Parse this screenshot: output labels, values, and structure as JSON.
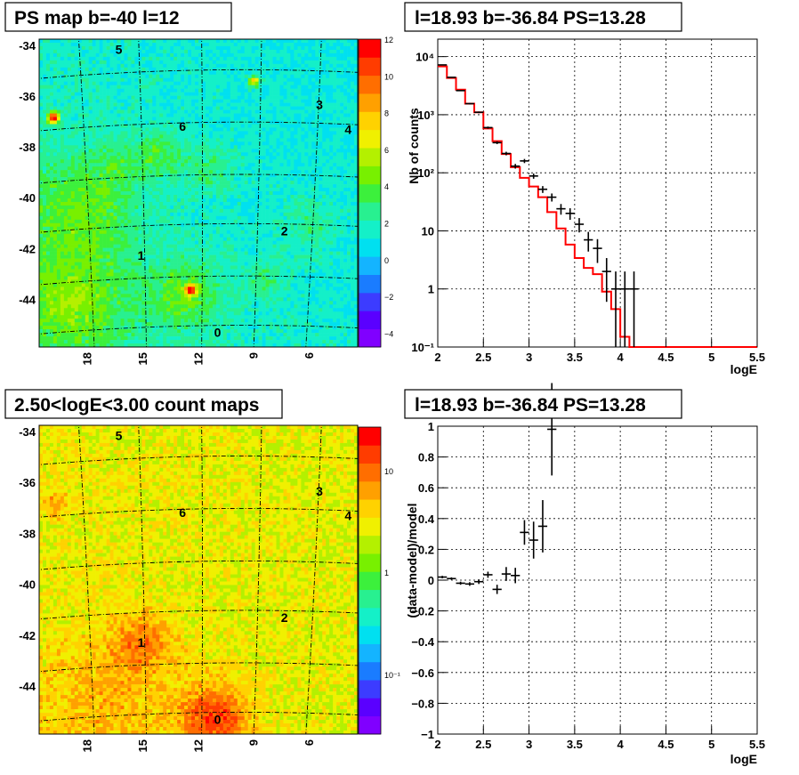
{
  "palette": [
    "#8000ff",
    "#5a00ff",
    "#3c3cff",
    "#1a7cff",
    "#14b4ff",
    "#00e0f0",
    "#14f0c8",
    "#28f090",
    "#3cf03c",
    "#78f000",
    "#b4f000",
    "#f0f000",
    "#ffd200",
    "#ffa000",
    "#ff6e00",
    "#ff3c00",
    "#ff0000"
  ],
  "panels": {
    "ps_map": {
      "title": "PS map b=-40 l=12",
      "type": "heatmap",
      "ytick_labels": [
        "-34",
        "-36",
        "-38",
        "-40",
        "-42",
        "-44"
      ],
      "xtick_labels": [
        "18",
        "15",
        "12",
        "9",
        "6"
      ],
      "colorbar_ticks": [
        "12",
        "10",
        "8",
        "6",
        "4",
        "2",
        "0",
        "−2",
        "−4"
      ],
      "sources": [
        {
          "label": "5"
        },
        {
          "label": "3"
        },
        {
          "label": "4"
        },
        {
          "label": "6"
        },
        {
          "label": "2"
        },
        {
          "label": "1"
        },
        {
          "label": "0"
        }
      ]
    },
    "count_map": {
      "title": "2.50<logE<3.00 count maps",
      "type": "heatmap",
      "ytick_labels": [
        "-34",
        "-36",
        "-38",
        "-40",
        "-42",
        "-44"
      ],
      "xtick_labels": [
        "18",
        "15",
        "12",
        "9",
        "6"
      ],
      "colorbar_ticks": [
        "10",
        "1",
        "10⁻¹"
      ],
      "sources": [
        {
          "label": "5"
        },
        {
          "label": "3"
        },
        {
          "label": "4"
        },
        {
          "label": "6"
        },
        {
          "label": "2"
        },
        {
          "label": "1"
        },
        {
          "label": "0"
        }
      ]
    },
    "spectrum": {
      "title": "l=18.93 b=-36.84 PS=13.28"
    },
    "residual": {
      "title": "l=18.93 b=-36.84 PS=13.28"
    }
  },
  "chart_data": [
    {
      "type": "heatmap",
      "title": "PS map b=-40 l=12",
      "xlabel": "",
      "ylabel": "",
      "colorbar_range": [
        -5,
        12
      ],
      "x_ticks": [
        18,
        15,
        12,
        9,
        6
      ],
      "y_ticks": [
        -34,
        -36,
        -38,
        -40,
        -42,
        -44
      ]
    },
    {
      "type": "heatmap",
      "title": "2.50<logE<3.00 count maps",
      "xlabel": "",
      "ylabel": "",
      "colorbar_scale": "log",
      "x_ticks": [
        18,
        15,
        12,
        9,
        6
      ],
      "y_ticks": [
        -34,
        -36,
        -38,
        -40,
        -42,
        -44
      ]
    },
    {
      "type": "line",
      "title": "l=18.93 b=-36.84 PS=13.28",
      "xlabel": "logE",
      "ylabel": "Nb of counts",
      "xlim": [
        2,
        5.5
      ],
      "ylim": [
        0.1,
        20000
      ],
      "yscale": "log",
      "grid": true,
      "x_ticks": [
        "2",
        "2.5",
        "3",
        "3.5",
        "4",
        "4.5",
        "5",
        "5.5"
      ],
      "y_ticks": [
        {
          "label": "10⁴",
          "value": 10000
        },
        {
          "label": "10³",
          "value": 1000
        },
        {
          "label": "10²",
          "value": 100
        },
        {
          "label": "10",
          "value": 10
        },
        {
          "label": "1",
          "value": 1
        },
        {
          "label": "10⁻¹",
          "value": 0.1
        }
      ],
      "bin_edges": [
        2.0,
        2.1,
        2.2,
        2.3,
        2.4,
        2.5,
        2.6,
        2.7,
        2.8,
        2.9,
        3.0,
        3.1,
        3.2,
        3.3,
        3.4,
        3.5,
        3.6,
        3.7,
        3.8,
        3.9,
        4.0,
        4.1,
        4.2,
        4.3,
        4.4,
        4.5,
        4.6,
        4.7,
        4.8,
        4.9,
        5.0,
        5.1,
        5.2,
        5.3,
        5.4,
        5.5
      ],
      "series": [
        {
          "name": "",
          "color": "#ff0000",
          "values": [
            6800,
            4300,
            2700,
            1550,
            1100,
            580,
            350,
            210,
            125,
            82,
            58,
            38,
            21,
            11,
            5.8,
            3.4,
            2.3,
            1.8,
            0.9,
            0.45,
            0.15,
            0.1,
            0.1,
            0.1,
            0.1,
            0.1,
            0.1,
            0.1,
            0.1,
            0.1,
            0.1,
            0.1,
            0.1,
            0.1,
            0.1
          ]
        },
        {
          "name": "",
          "color": "#000000",
          "points": [
            {
              "x": 2.05,
              "y": 7200,
              "err": [
                90,
                90
              ]
            },
            {
              "x": 2.15,
              "y": 4400,
              "err": [
                70,
                70
              ]
            },
            {
              "x": 2.25,
              "y": 2600,
              "err": [
                55,
                55
              ]
            },
            {
              "x": 2.35,
              "y": 1550,
              "err": [
                40,
                40
              ]
            },
            {
              "x": 2.45,
              "y": 1100,
              "err": [
                35,
                35
              ]
            },
            {
              "x": 2.55,
              "y": 600,
              "err": [
                25,
                25
              ]
            },
            {
              "x": 2.65,
              "y": 330,
              "err": [
                18,
                18
              ]
            },
            {
              "x": 2.75,
              "y": 215,
              "err": [
                15,
                15
              ]
            },
            {
              "x": 2.85,
              "y": 130,
              "err": [
                12,
                12
              ]
            },
            {
              "x": 2.95,
              "y": 160,
              "err": [
                13,
                13
              ]
            },
            {
              "x": 3.05,
              "y": 88,
              "err": [
                9,
                9
              ]
            },
            {
              "x": 3.15,
              "y": 52,
              "err": [
                7,
                7
              ]
            },
            {
              "x": 3.25,
              "y": 38,
              "err": [
                6,
                6
              ]
            },
            {
              "x": 3.35,
              "y": 24,
              "err": [
                5,
                5
              ]
            },
            {
              "x": 3.45,
              "y": 20,
              "err": [
                4.5,
                4.5
              ]
            },
            {
              "x": 3.55,
              "y": 13,
              "err": [
                3.6,
                3.6
              ]
            },
            {
              "x": 3.65,
              "y": 7,
              "err": [
                2.6,
                2.6
              ]
            },
            {
              "x": 3.75,
              "y": 5,
              "err": [
                2.2,
                2.2
              ]
            },
            {
              "x": 3.85,
              "y": 2,
              "err": [
                1.4,
                1.4
              ]
            },
            {
              "x": 3.95,
              "y": 1,
              "err": [
                0.9,
                1.0
              ]
            },
            {
              "x": 4.05,
              "y": 1,
              "err": [
                0.9,
                1.0
              ]
            },
            {
              "x": 4.15,
              "y": 1,
              "err": [
                0.9,
                1.0
              ]
            }
          ]
        }
      ]
    },
    {
      "type": "scatter",
      "title": "l=18.93 b=-36.84 PS=13.28",
      "xlabel": "logE",
      "ylabel": "(data-model)/model",
      "xlim": [
        2,
        5.5
      ],
      "ylim": [
        -1,
        1
      ],
      "grid": true,
      "x_ticks": [
        "2",
        "2.5",
        "3",
        "3.5",
        "4",
        "4.5",
        "5",
        "5.5"
      ],
      "y_ticks": [
        "1",
        "0.8",
        "0.6",
        "0.4",
        "0.2",
        "0",
        "−0.2",
        "−0.4",
        "−0.6",
        "−0.8",
        "−1"
      ],
      "points": [
        {
          "x": 2.05,
          "y": 0.02,
          "err": 0.008
        },
        {
          "x": 2.15,
          "y": 0.01,
          "err": 0.008
        },
        {
          "x": 2.25,
          "y": -0.02,
          "err": 0.01
        },
        {
          "x": 2.35,
          "y": -0.025,
          "err": 0.012
        },
        {
          "x": 2.45,
          "y": -0.01,
          "err": 0.015
        },
        {
          "x": 2.55,
          "y": 0.035,
          "err": 0.02
        },
        {
          "x": 2.65,
          "y": -0.06,
          "err": 0.03
        },
        {
          "x": 2.75,
          "y": 0.04,
          "err": 0.045
        },
        {
          "x": 2.85,
          "y": 0.03,
          "err": 0.05
        },
        {
          "x": 2.95,
          "y": 0.31,
          "err": 0.08
        },
        {
          "x": 3.05,
          "y": 0.26,
          "err": 0.12
        },
        {
          "x": 3.15,
          "y": 0.35,
          "err": 0.17
        },
        {
          "x": 3.25,
          "y": 0.98,
          "err": 0.3
        }
      ]
    }
  ]
}
